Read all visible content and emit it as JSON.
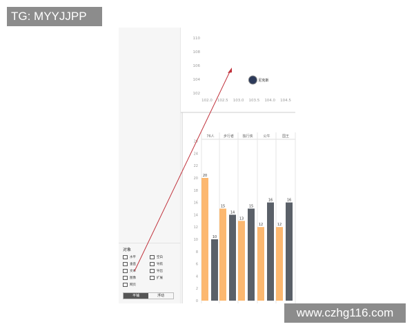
{
  "watermarks": {
    "top_left": "TG: MYYJJPP",
    "bottom_right": "www.czhg116.com"
  },
  "objects_panel": {
    "title": "对象",
    "items": [
      {
        "label": "水平",
        "icon": "horizontal-icon"
      },
      {
        "label": "空白",
        "icon": "blank-icon"
      },
      {
        "label": "垂直",
        "icon": "vertical-icon"
      },
      {
        "label": "导航",
        "icon": "navigation-icon"
      },
      {
        "label": "文本",
        "icon": "text-icon"
      },
      {
        "label": "导出",
        "icon": "export-icon"
      },
      {
        "label": "图像",
        "icon": "image-icon"
      },
      {
        "label": "扩展",
        "icon": "extension-icon"
      },
      {
        "label": "网页",
        "icon": "web-icon"
      }
    ],
    "layout_tabs": [
      {
        "label": "平铺",
        "active": true
      },
      {
        "label": "浮动",
        "active": false
      }
    ]
  },
  "colors": {
    "orange": "#fcb870",
    "dark": "#5a6068",
    "arrow": "#c0303a"
  },
  "chart_data": [
    {
      "type": "scatter",
      "xticks": [
        "102.0",
        "102.5",
        "103.0",
        "103.5",
        "104.0",
        "104.5"
      ],
      "yticks": [
        "102",
        "104",
        "106",
        "108",
        "110"
      ],
      "xlim": [
        102,
        104.5
      ],
      "ylim": [
        102,
        110
      ],
      "points": [
        {
          "x": 103.5,
          "y": 104,
          "label": "尼克斯",
          "icon": "knicks-logo"
        }
      ]
    },
    {
      "type": "bar",
      "categories": [
        "76人",
        "步行者",
        "独行侠",
        "公牛",
        "国王"
      ],
      "ylim": [
        0,
        26
      ],
      "yticks": [
        "0",
        "2",
        "4",
        "6",
        "8",
        "10",
        "12",
        "14",
        "16",
        "18",
        "20",
        "22",
        "24",
        "26"
      ],
      "series": [
        {
          "values": [
            20,
            15,
            13,
            12,
            12
          ],
          "color": "#fcb870"
        },
        {
          "values": [
            10,
            14,
            15,
            16,
            16
          ],
          "color": "#5a6068"
        }
      ]
    }
  ]
}
